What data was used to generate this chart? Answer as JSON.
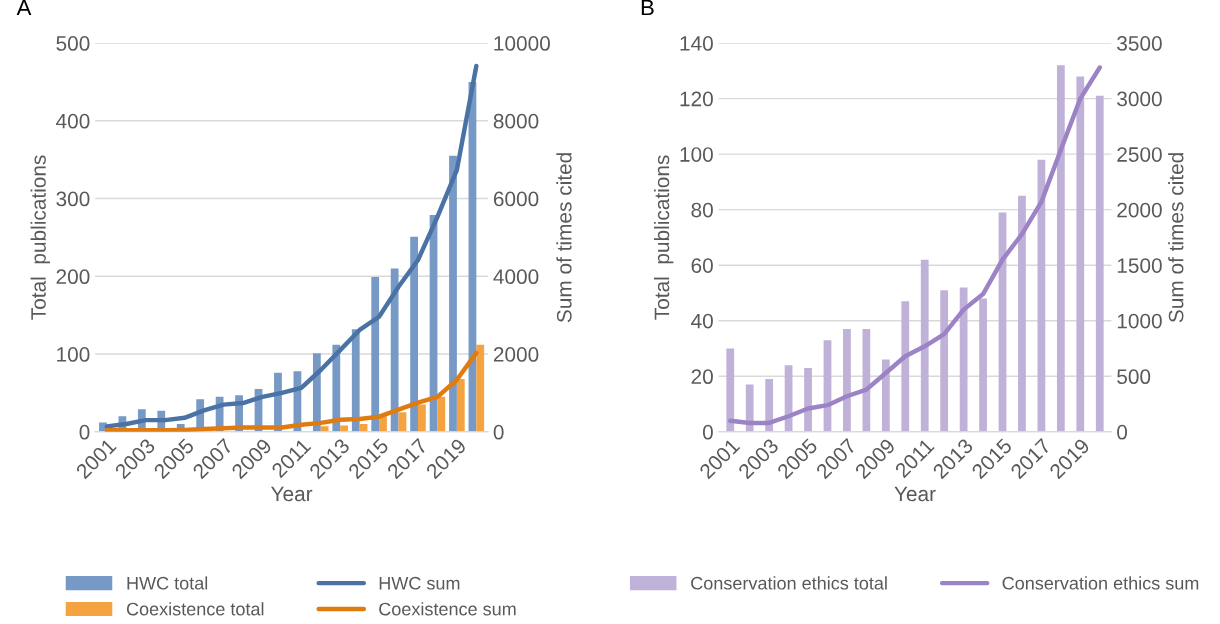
{
  "chart_data": [
    {
      "type": "bar",
      "title": "A",
      "xlabel": "Year",
      "ylabel": "Total  publications",
      "y2label": "Sum of times cited",
      "categories": [
        "2001",
        null,
        "2003",
        null,
        "2005",
        null,
        "2007",
        null,
        "2009",
        null,
        "2011",
        null,
        "2013",
        null,
        "2015",
        null,
        "2017",
        null,
        "2019",
        null
      ],
      "series": [
        {
          "name": "HWC total",
          "color": "#7699c5",
          "values": [
            12,
            20,
            29,
            27,
            10,
            42,
            45,
            47,
            55,
            76,
            78,
            101,
            112,
            132,
            199,
            210,
            251,
            279,
            355,
            450
          ]
        },
        {
          "name": "Coexistence total",
          "color": "#f4a340",
          "values": [
            null,
            null,
            null,
            null,
            null,
            null,
            null,
            null,
            null,
            null,
            null,
            7,
            8,
            10,
            20,
            25,
            35,
            45,
            68,
            112
          ]
        },
        {
          "name": "HWC sum",
          "type": "line",
          "axis": "y2",
          "color": "#4a72a5",
          "values": [
            140,
            200,
            300,
            300,
            360,
            550,
            700,
            740,
            900,
            1000,
            1130,
            1590,
            2100,
            2620,
            2960,
            3730,
            4420,
            5530,
            6740,
            9410
          ]
        },
        {
          "name": "Coexistence sum",
          "type": "line",
          "axis": "y2",
          "color": "#e07b10",
          "values": [
            40,
            40,
            40,
            40,
            50,
            70,
            90,
            110,
            110,
            110,
            180,
            230,
            310,
            330,
            390,
            570,
            750,
            900,
            1340,
            2030
          ]
        }
      ],
      "ylim": [
        0,
        500
      ],
      "yticks": [
        0,
        100,
        200,
        300,
        400,
        500
      ],
      "y2lim": [
        0,
        10000
      ],
      "y2ticks": [
        0,
        2000,
        4000,
        6000,
        8000,
        10000
      ],
      "grid": "y",
      "legend": "bottom",
      "marker": "none",
      "line_style": "solid"
    },
    {
      "type": "bar",
      "title": "B",
      "xlabel": "Year",
      "ylabel": "Total  publications",
      "y2label": "Sum of times cited",
      "categories": [
        "2001",
        null,
        "2003",
        null,
        "2005",
        null,
        "2007",
        null,
        "2009",
        null,
        "2011",
        null,
        "2013",
        null,
        "2015",
        null,
        "2017",
        null,
        "2019",
        null
      ],
      "series": [
        {
          "name": "Conservation ethics total",
          "color": "#c0b1d8",
          "values": [
            30,
            17,
            19,
            24,
            23,
            33,
            37,
            37,
            26,
            47,
            62,
            51,
            52,
            48,
            79,
            85,
            98,
            132,
            128,
            121
          ]
        },
        {
          "name": "Conservation ethics sum",
          "type": "line",
          "axis": "y2",
          "color": "#9b83c5",
          "values": [
            100,
            80,
            80,
            140,
            210,
            240,
            320,
            380,
            530,
            680,
            770,
            880,
            1100,
            1240,
            1550,
            1780,
            2070,
            2540,
            3000,
            3280
          ]
        }
      ],
      "ylim": [
        0,
        140
      ],
      "yticks": [
        0,
        20,
        40,
        60,
        80,
        100,
        120,
        140
      ],
      "y2lim": [
        0,
        3500
      ],
      "y2ticks": [
        0,
        500,
        1000,
        1500,
        2000,
        2500,
        3000,
        3500
      ],
      "grid": "y",
      "legend": "bottom",
      "marker": "none",
      "line_style": "solid"
    }
  ]
}
